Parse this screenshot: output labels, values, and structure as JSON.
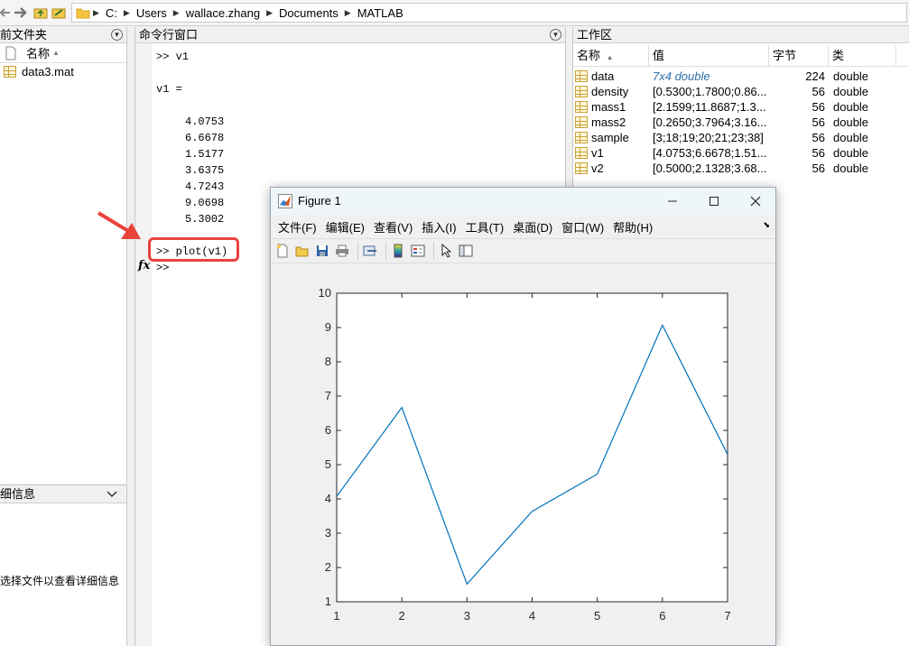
{
  "address_bar": {
    "path": [
      "C:",
      "Users",
      "wallace.zhang",
      "Documents",
      "MATLAB"
    ]
  },
  "current_folder": {
    "title": "前文件夹",
    "column_name": "名称",
    "files": [
      {
        "name": "data3.mat",
        "icon": "mat-file-icon"
      }
    ]
  },
  "details": {
    "title": "细信息",
    "hint": "选择文件以查看详细信息"
  },
  "command_window": {
    "title": "命令行窗口",
    "lines": [
      ">> v1",
      "v1 =",
      "4.0753",
      "6.6678",
      "1.5177",
      "3.6375",
      "4.7243",
      "9.0698",
      "5.3002"
    ],
    "highlighted_command": ">> plot(v1)",
    "prompt": ">>",
    "fx_label": "fx"
  },
  "workspace": {
    "title": "工作区",
    "columns": [
      "名称",
      "值",
      "字节",
      "类"
    ],
    "rows": [
      {
        "name": "data",
        "value": "7x4 double",
        "bytes": "224",
        "class": "double"
      },
      {
        "name": "density",
        "value": "[0.5300;1.7800;0.86...",
        "bytes": "56",
        "class": "double"
      },
      {
        "name": "mass1",
        "value": "[2.1599;11.8687;1.3...",
        "bytes": "56",
        "class": "double"
      },
      {
        "name": "mass2",
        "value": "[0.2650;3.7964;3.16...",
        "bytes": "56",
        "class": "double"
      },
      {
        "name": "sample",
        "value": "[3;18;19;20;21;23;38]",
        "bytes": "56",
        "class": "double"
      },
      {
        "name": "v1",
        "value": "[4.0753;6.6678;1.51...",
        "bytes": "56",
        "class": "double"
      },
      {
        "name": "v2",
        "value": "[0.5000;2.1328;3.68...",
        "bytes": "56",
        "class": "double"
      }
    ]
  },
  "figure": {
    "title": "Figure 1",
    "menu": [
      "文件(F)",
      "编辑(E)",
      "查看(V)",
      "插入(I)",
      "工具(T)",
      "桌面(D)",
      "窗口(W)",
      "帮助(H)"
    ],
    "line_color": "#0072bd"
  },
  "chart_data": {
    "type": "line",
    "x": [
      1,
      2,
      3,
      4,
      5,
      6,
      7
    ],
    "series": [
      {
        "values": [
          4.0753,
          6.6678,
          1.5177,
          3.6375,
          4.7243,
          9.0698,
          5.3002
        ]
      }
    ],
    "xlim": [
      1,
      7
    ],
    "ylim": [
      1,
      10
    ],
    "xticks": [
      "1",
      "2",
      "3",
      "4",
      "5",
      "6",
      "7"
    ],
    "yticks": [
      "1",
      "2",
      "3",
      "4",
      "5",
      "6",
      "7",
      "8",
      "9",
      "10"
    ],
    "grid": false
  }
}
